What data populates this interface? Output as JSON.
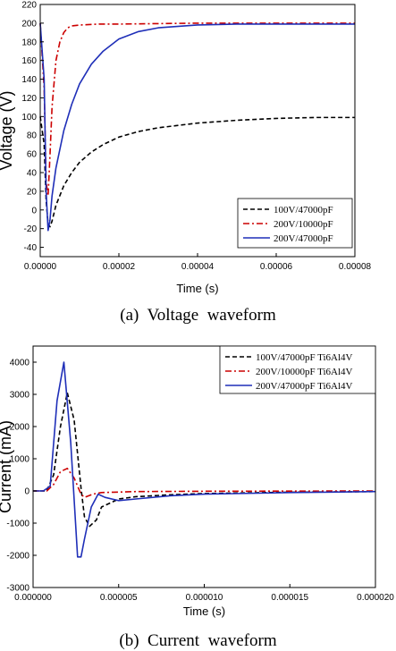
{
  "chart_data": [
    {
      "type": "line",
      "caption": "(a)  Voltage  waveform",
      "xlabel": "Time (s)",
      "ylabel": "Voltage (V)",
      "xlim": [
        0,
        8e-05
      ],
      "ylim": [
        -50,
        220
      ],
      "x_ticks": [
        0,
        2e-05,
        4e-05,
        6e-05,
        8e-05
      ],
      "x_tick_labels": [
        "0.00000",
        "0.00002",
        "0.00004",
        "0.00006",
        "0.00008"
      ],
      "y_ticks": [
        -40,
        -20,
        0,
        20,
        40,
        60,
        80,
        100,
        120,
        140,
        160,
        180,
        200,
        220
      ],
      "y_tick_labels": [
        "-40",
        "-20",
        "0",
        "20",
        "40",
        "60",
        "80",
        "100",
        "120",
        "140",
        "160",
        "180",
        "200",
        "220"
      ],
      "grid": false,
      "legend_position": "bottom-right",
      "series": [
        {
          "name": "100V/47000pF",
          "color": "#000000",
          "dash": "dash",
          "x": [
            0,
            1e-06,
            1.5e-06,
            2e-06,
            2.5e-06,
            3e-06,
            4e-06,
            6e-06,
            8e-06,
            1e-05,
            1.3e-05,
            1.6e-05,
            2e-05,
            2.5e-05,
            3e-05,
            4e-05,
            5e-05,
            6e-05,
            7e-05,
            8e-05
          ],
          "y": [
            100,
            70,
            10,
            -15,
            -18,
            -12,
            5,
            26,
            40,
            51,
            62,
            70,
            78,
            84,
            88,
            93,
            96,
            98,
            99,
            99
          ]
        },
        {
          "name": "200V/10000pF",
          "color": "#cc0000",
          "dash": "dashdot",
          "x": [
            0,
            1e-06,
            1.5e-06,
            2e-06,
            2.5e-06,
            3e-06,
            4e-06,
            5e-06,
            6e-06,
            7e-06,
            8e-06,
            1e-05,
            1.5e-05,
            2e-05,
            4e-05,
            6e-05,
            8e-05
          ],
          "y": [
            200,
            130,
            30,
            15,
            60,
            110,
            160,
            180,
            190,
            195,
            197,
            198,
            199,
            199,
            200,
            200,
            200
          ]
        },
        {
          "name": "200V/47000pF",
          "color": "#1f2fb8",
          "dash": "solid",
          "x": [
            0,
            1e-06,
            1.5e-06,
            2e-06,
            2.5e-06,
            3e-06,
            4e-06,
            6e-06,
            8e-06,
            1e-05,
            1.3e-05,
            1.6e-05,
            2e-05,
            2.5e-05,
            3e-05,
            4e-05,
            5e-05,
            6e-05,
            7e-05,
            8e-05
          ],
          "y": [
            200,
            140,
            20,
            -22,
            -10,
            15,
            45,
            85,
            113,
            135,
            156,
            170,
            183,
            191,
            195,
            198,
            199,
            199,
            199,
            199
          ]
        }
      ]
    },
    {
      "type": "line",
      "caption": "(b)  Current  waveform",
      "xlabel": "Time (s)",
      "ylabel": "Current (mA)",
      "xlim": [
        0,
        2e-05
      ],
      "ylim": [
        -3000,
        4500
      ],
      "x_ticks": [
        0,
        5e-06,
        1e-05,
        1.5e-05,
        2e-05
      ],
      "x_tick_labels": [
        "0.000000",
        "0.000005",
        "0.000010",
        "0.000015",
        "0.000020"
      ],
      "y_ticks": [
        -3000,
        -2000,
        -1000,
        0,
        1000,
        2000,
        3000,
        4000
      ],
      "y_tick_labels": [
        "-3000",
        "-2000",
        "-1000",
        "0",
        "1000",
        "2000",
        "3000",
        "4000"
      ],
      "grid": false,
      "legend_position": "top-right",
      "series": [
        {
          "name": "100V/47000pF Ti6Al4V",
          "color": "#000000",
          "dash": "dash",
          "x": [
            0,
            8e-07,
            1.2e-06,
            1.6e-06,
            2e-06,
            2.4e-06,
            2.8e-06,
            3e-06,
            3.3e-06,
            3.7e-06,
            4e-06,
            5e-06,
            6e-06,
            8e-06,
            1e-05,
            1.5e-05,
            2e-05
          ],
          "y": [
            0,
            0,
            500,
            2000,
            3050,
            2200,
            100,
            -800,
            -1100,
            -900,
            -500,
            -250,
            -180,
            -120,
            -80,
            -40,
            -20
          ]
        },
        {
          "name": "200V/10000pF Ti6Al4V",
          "color": "#cc0000",
          "dash": "dashdot",
          "x": [
            0,
            8e-07,
            1.2e-06,
            1.6e-06,
            2e-06,
            2.4e-06,
            2.8e-06,
            3e-06,
            3.5e-06,
            4e-06,
            6e-06,
            1e-05,
            2e-05
          ],
          "y": [
            0,
            0,
            200,
            600,
            700,
            400,
            -100,
            -200,
            -100,
            -50,
            -20,
            -10,
            0
          ]
        },
        {
          "name": "200V/47000pF Ti6Al4V",
          "color": "#1f2fb8",
          "dash": "solid",
          "x": [
            0,
            6e-07,
            1e-06,
            1.4e-06,
            1.8e-06,
            2.2e-06,
            2.6e-06,
            2.8e-06,
            3e-06,
            3.4e-06,
            3.8e-06,
            4.2e-06,
            5e-06,
            6e-06,
            8e-06,
            1e-05,
            1.5e-05,
            2e-05
          ],
          "y": [
            0,
            0,
            150,
            2800,
            4000,
            1500,
            -2050,
            -2050,
            -1500,
            -500,
            -100,
            -200,
            -300,
            -250,
            -150,
            -100,
            -50,
            -20
          ]
        }
      ]
    }
  ]
}
